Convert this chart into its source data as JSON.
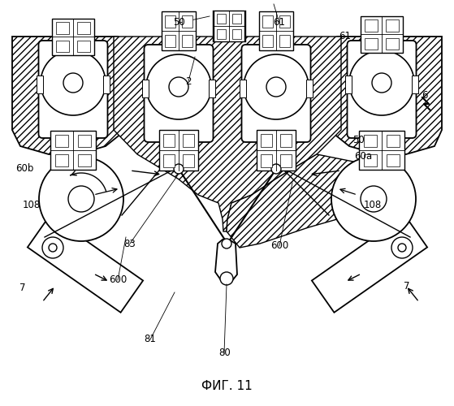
{
  "title": "ФИГ. 11",
  "background": "#ffffff",
  "line_color": "#000000",
  "lw": 1.0,
  "labels": {
    "50_top": [
      0.395,
      0.945,
      "50"
    ],
    "61_left": [
      0.615,
      0.945,
      "61"
    ],
    "61_right": [
      0.76,
      0.91,
      "61"
    ],
    "2": [
      0.415,
      0.8,
      "2"
    ],
    "60b": [
      0.055,
      0.585,
      "60b"
    ],
    "50_right": [
      0.79,
      0.655,
      "50"
    ],
    "60a": [
      0.8,
      0.615,
      "60a"
    ],
    "108_left": [
      0.07,
      0.495,
      "108"
    ],
    "108_right": [
      0.82,
      0.495,
      "108"
    ],
    "83": [
      0.285,
      0.4,
      "83"
    ],
    "600_left": [
      0.26,
      0.31,
      "600"
    ],
    "600_right": [
      0.615,
      0.395,
      "600"
    ],
    "81": [
      0.33,
      0.165,
      "81"
    ],
    "80": [
      0.495,
      0.13,
      "80"
    ],
    "7_left": [
      0.05,
      0.29,
      "7"
    ],
    "7_right": [
      0.895,
      0.295,
      "7"
    ],
    "6": [
      0.935,
      0.765,
      "6"
    ]
  }
}
